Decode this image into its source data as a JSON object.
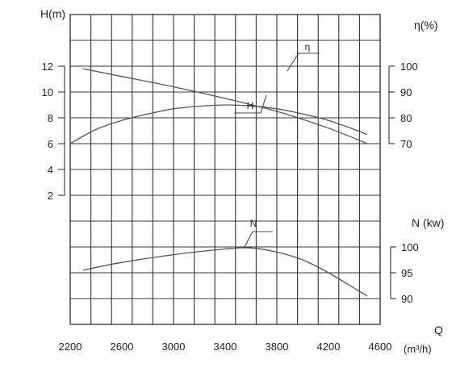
{
  "chart_data": {
    "type": "line",
    "x": {
      "label": "Q",
      "unit": "(m³/h)",
      "ticks": [
        2200,
        2600,
        3000,
        3400,
        3800,
        4200,
        4600
      ],
      "tick_labels": [
        "2200",
        "2600",
        "3000",
        "3400",
        "3800",
        "4200",
        "4600"
      ],
      "range": [
        2200,
        4600
      ]
    },
    "axes": {
      "H": {
        "label": "H(m)",
        "ticks": [
          12,
          10,
          8,
          6,
          4,
          2
        ],
        "tick_labels": [
          "12",
          "10",
          "8",
          "6",
          "4",
          "2"
        ],
        "range": [
          2,
          12
        ]
      },
      "eta": {
        "label": "η(%)",
        "ticks": [
          100,
          90,
          80,
          70
        ],
        "tick_labels": [
          "100",
          "90",
          "80",
          "70"
        ],
        "range": [
          70,
          100
        ]
      },
      "N": {
        "label": "N (kw)",
        "ticks": [
          100,
          95,
          90
        ],
        "tick_labels": [
          "100",
          "95",
          "90"
        ],
        "range": [
          90,
          100
        ]
      }
    },
    "series": [
      {
        "name": "η",
        "axis": "eta",
        "color": "#555555",
        "x": [
          2200,
          2400,
          2600,
          2800,
          3000,
          3200,
          3400,
          3600,
          3800,
          4000,
          4200,
          4400,
          4500
        ],
        "y": [
          70,
          75.5,
          79,
          81.5,
          83.5,
          84.5,
          85,
          84.6,
          83.5,
          81.5,
          79,
          75.5,
          73.5
        ]
      },
      {
        "name": "H",
        "axis": "H",
        "color": "#555555",
        "x": [
          2300,
          2600,
          3000,
          3400,
          3800,
          4200,
          4500
        ],
        "y": [
          11.8,
          11.2,
          10.4,
          9.5,
          8.5,
          7.2,
          6.0
        ]
      },
      {
        "name": "N",
        "axis": "N",
        "color": "#555555",
        "x": [
          2300,
          2600,
          3000,
          3400,
          3600,
          3800,
          4000,
          4200,
          4400,
          4500
        ],
        "y": [
          95.5,
          97.0,
          98.5,
          99.6,
          99.8,
          99.0,
          97.5,
          95.0,
          92.0,
          90.5
        ]
      }
    ],
    "grid": true,
    "colors": {
      "background": "#ffffff",
      "plot_bg": "#ffffff",
      "grid": "#333333",
      "curve": "#555555"
    }
  }
}
